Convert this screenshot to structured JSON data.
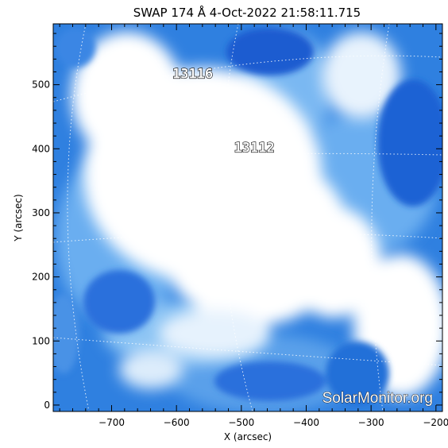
{
  "chart_data": {
    "type": "heatmap",
    "title": "SWAP 174 Å  4-Oct-2022 21:58:11.715",
    "xlabel": "X (arcsec)",
    "ylabel": "Y (arcsec)",
    "xlim": [
      -790,
      -190
    ],
    "ylim": [
      -10,
      595
    ],
    "xticks": [
      -700,
      -600,
      -500,
      -400,
      -300,
      -200
    ],
    "yticks": [
      0,
      100,
      200,
      300,
      400,
      500
    ],
    "colormap": [
      "#0a3fc0",
      "#4b97ea",
      "#b9dcfa",
      "#ffffff"
    ],
    "grid": "dotted heliographic grid",
    "regions": [
      {
        "label": "13116",
        "x": -575,
        "y": 510
      },
      {
        "label": "13112",
        "x": -480,
        "y": 395
      }
    ],
    "watermark": "SolarMonitor.org"
  }
}
